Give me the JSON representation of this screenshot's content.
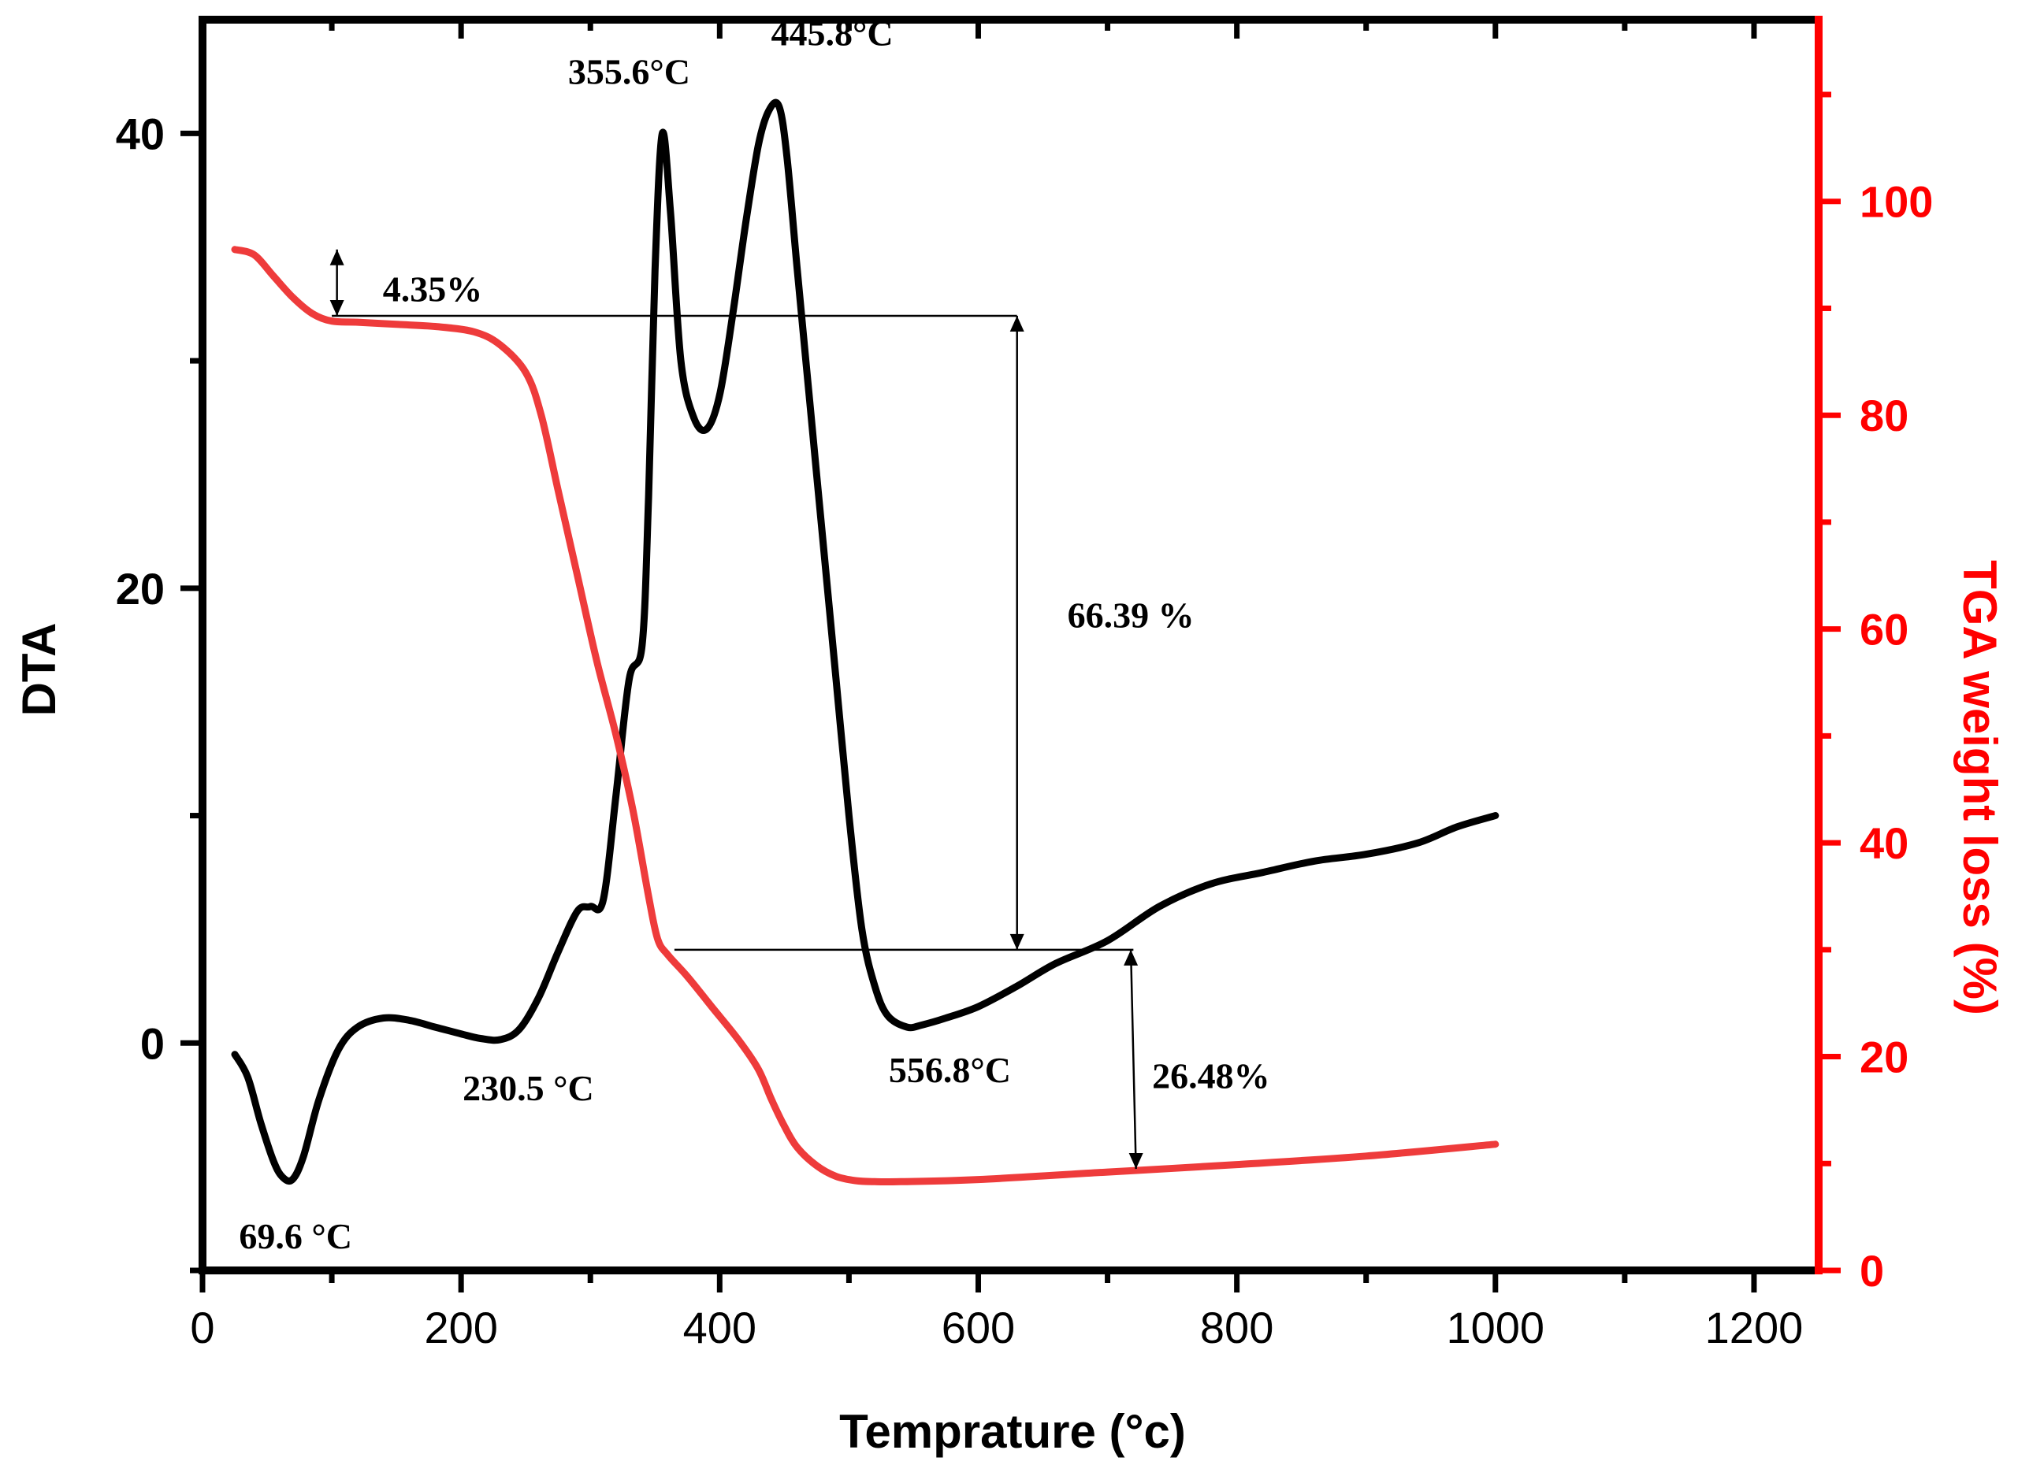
{
  "chart_data": {
    "type": "line",
    "title": "",
    "xlabel": "Temprature (°c)",
    "ylabel_left": "DTA",
    "ylabel_right": "TGA weight loss (%)",
    "xlim": [
      0,
      1250
    ],
    "ylim_left": [
      -10,
      45
    ],
    "ylim_right": [
      0,
      117
    ],
    "x_ticks": [
      0,
      200,
      400,
      600,
      800,
      1000,
      1200
    ],
    "x_tick_labels": [
      "0",
      "200",
      "400",
      "600",
      "800",
      "1000",
      "1200"
    ],
    "y_left_ticks": [
      0,
      20,
      40
    ],
    "y_left_tick_labels": [
      "0",
      "20",
      "40"
    ],
    "y_right_ticks": [
      0,
      20,
      40,
      60,
      80,
      100
    ],
    "y_right_tick_labels": [
      "0",
      "20",
      "40",
      "60",
      "80",
      "100"
    ],
    "colors": {
      "dta": "#000000",
      "tga": "#ee3b3b",
      "right_axis": "#ff0000"
    },
    "series": [
      {
        "name": "DTA",
        "axis": "left",
        "color": "#000000",
        "x": [
          25,
          35,
          45,
          55,
          62,
          69.6,
          78,
          90,
          105,
          120,
          140,
          160,
          180,
          200,
          215,
          230.5,
          245,
          260,
          275,
          290,
          300,
          310,
          320,
          330,
          340,
          345,
          350,
          355.6,
          362,
          370,
          380,
          390,
          400,
          410,
          420,
          430,
          438,
          445.8,
          452,
          460,
          470,
          480,
          490,
          500,
          510,
          520,
          530,
          545,
          556.8,
          575,
          600,
          630,
          660,
          700,
          740,
          780,
          820,
          860,
          900,
          940,
          970,
          1000
        ],
        "y": [
          -0.5,
          -1.5,
          -3.5,
          -5.2,
          -5.9,
          -6.0,
          -5.0,
          -2.5,
          -0.3,
          0.7,
          1.1,
          1.0,
          0.7,
          0.4,
          0.2,
          0.15,
          0.6,
          2.0,
          4.0,
          5.8,
          6.0,
          6.3,
          11.0,
          16.0,
          17.5,
          24.0,
          34.0,
          40.0,
          36.5,
          30.0,
          27.5,
          27.0,
          28.5,
          32.0,
          36.0,
          39.5,
          41.0,
          41.2,
          39.0,
          34.0,
          28.0,
          22.0,
          16.0,
          10.0,
          5.0,
          2.5,
          1.2,
          0.7,
          0.8,
          1.1,
          1.6,
          2.5,
          3.5,
          4.5,
          6.0,
          7.0,
          7.5,
          8.0,
          8.3,
          8.8,
          9.5,
          10.0
        ]
      },
      {
        "name": "TGA",
        "axis": "right",
        "color": "#ee3b3b",
        "x": [
          25,
          40,
          55,
          70,
          85,
          100,
          120,
          150,
          180,
          210,
          230,
          250,
          262,
          275,
          290,
          305,
          320,
          333,
          345,
          352,
          360,
          375,
          395,
          415,
          430,
          440,
          450,
          460,
          475,
          490,
          505,
          520,
          540,
          600,
          700,
          800,
          900,
          1000
        ],
        "y": [
          95.5,
          95.0,
          93.0,
          91.0,
          89.5,
          88.8,
          88.7,
          88.5,
          88.3,
          87.8,
          86.6,
          84.0,
          80.0,
          73.0,
          65.0,
          57.0,
          50.0,
          43.0,
          35.0,
          31.0,
          29.5,
          27.5,
          24.5,
          21.5,
          18.8,
          16.0,
          13.5,
          11.5,
          9.8,
          8.8,
          8.4,
          8.3,
          8.3,
          8.5,
          9.2,
          9.9,
          10.7,
          11.8
        ]
      }
    ],
    "annotations": [
      {
        "text": "355.6°C",
        "x": 330,
        "y_dta": 42.8
      },
      {
        "text": "445.8°C",
        "x": 487,
        "y_dta": 44.5
      },
      {
        "text": "69.6 °C",
        "x": 72,
        "y_dta": -8.4
      },
      {
        "text": "230.5 °C",
        "x": 252,
        "y_dta": -1.9
      },
      {
        "text": "556.8°C",
        "x": 578,
        "y_dta": -1.1
      },
      {
        "text": "4.35%",
        "x": 178,
        "y_tga": 92
      },
      {
        "text": "66.39 %",
        "x": 718,
        "y_tga": 61.5
      },
      {
        "text": "26.48%",
        "x": 780,
        "y_tga": 18.4
      }
    ],
    "reference_lines": [
      {
        "from": [
          100,
          89.3
        ],
        "to": [
          630,
          89.3
        ],
        "axis": "right"
      },
      {
        "from": [
          365,
          30.0
        ],
        "to": [
          720,
          30.0
        ],
        "axis": "right"
      }
    ],
    "arrows": [
      {
        "label": "4.35%",
        "x": 104,
        "from": 95.5,
        "to": 89.3,
        "axis": "right",
        "double": true
      },
      {
        "label": "66.39 %",
        "x": 630,
        "from": 89.3,
        "to": 30.0,
        "axis": "right",
        "double": true
      },
      {
        "label": "26.48%",
        "x_from": 718,
        "x_to": 722,
        "from": 30.0,
        "to": 9.5,
        "axis": "right",
        "double": true
      }
    ]
  }
}
